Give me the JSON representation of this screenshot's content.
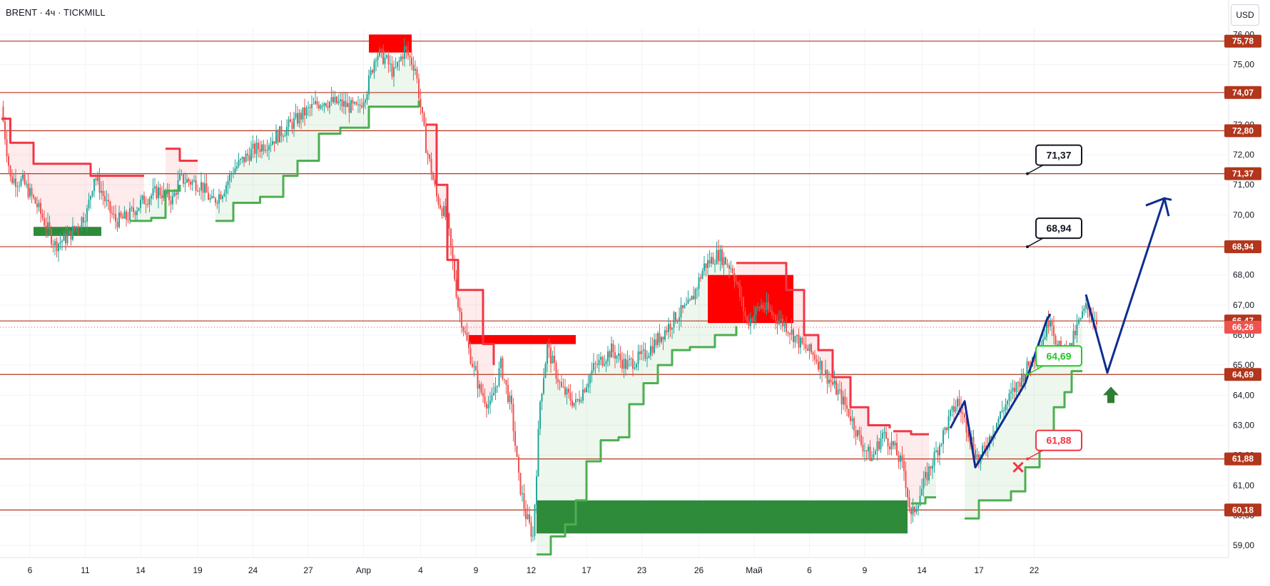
{
  "header": {
    "symbol": "BRENT",
    "timeframe": "4ч",
    "broker": "TICKMILL",
    "separator": "·"
  },
  "currency_button": "USD",
  "chart_data": {
    "type": "candlestick",
    "title": "BRENT · 4ч · TICKMILL",
    "ylabel": "USD",
    "ylim": [
      58.6,
      76.2
    ],
    "y_ticks": [
      "59,00",
      "60,00",
      "61,00",
      "62,00",
      "63,00",
      "64,00",
      "65,00",
      "66,00",
      "67,00",
      "68,00",
      "69,00",
      "70,00",
      "71,00",
      "72,00",
      "73,00",
      "74,00",
      "75,00",
      "76,00"
    ],
    "x_ticks": [
      "6",
      "11",
      "14",
      "19",
      "24",
      "27",
      "Апр",
      "4",
      "9",
      "12",
      "17",
      "23",
      "26",
      "Май",
      "6",
      "9",
      "14",
      "17",
      "22"
    ],
    "grid": true,
    "price_path": [
      [
        0,
        73.6
      ],
      [
        5,
        71.2
      ],
      [
        12,
        71.1
      ],
      [
        20,
        70.3
      ],
      [
        30,
        69.0
      ],
      [
        38,
        69.3
      ],
      [
        48,
        70.1
      ],
      [
        52,
        71.3
      ],
      [
        56,
        70.8
      ],
      [
        60,
        70.2
      ],
      [
        64,
        69.8
      ],
      [
        70,
        69.9
      ],
      [
        80,
        70.5
      ],
      [
        88,
        70.8
      ],
      [
        96,
        70.5
      ],
      [
        100,
        71.2
      ],
      [
        112,
        71.0
      ],
      [
        118,
        70.4
      ],
      [
        124,
        70.8
      ],
      [
        130,
        71.5
      ],
      [
        140,
        72.1
      ],
      [
        152,
        72.5
      ],
      [
        162,
        73.0
      ],
      [
        170,
        73.4
      ],
      [
        180,
        73.8
      ],
      [
        190,
        73.7
      ],
      [
        200,
        73.5
      ],
      [
        205,
        74.2
      ],
      [
        210,
        75.4
      ],
      [
        215,
        75.2
      ],
      [
        220,
        74.7
      ],
      [
        226,
        75.5
      ],
      [
        232,
        74.9
      ],
      [
        238,
        72.3
      ],
      [
        244,
        70.6
      ],
      [
        250,
        69.8
      ],
      [
        256,
        67.0
      ],
      [
        262,
        65.5
      ],
      [
        268,
        64.2
      ],
      [
        274,
        63.6
      ],
      [
        280,
        65.0
      ],
      [
        286,
        63.5
      ],
      [
        290,
        61.2
      ],
      [
        294,
        60.0
      ],
      [
        298,
        59.3
      ],
      [
        302,
        63.8
      ],
      [
        306,
        65.6
      ],
      [
        314,
        64.2
      ],
      [
        322,
        63.7
      ],
      [
        332,
        64.9
      ],
      [
        342,
        65.5
      ],
      [
        350,
        65.0
      ],
      [
        360,
        65.3
      ],
      [
        370,
        66.0
      ],
      [
        378,
        66.6
      ],
      [
        386,
        67.0
      ],
      [
        394,
        68.3
      ],
      [
        402,
        68.7
      ],
      [
        410,
        68.2
      ],
      [
        418,
        66.4
      ],
      [
        426,
        67.0
      ],
      [
        434,
        66.6
      ],
      [
        440,
        66.3
      ],
      [
        448,
        65.7
      ],
      [
        456,
        65.3
      ],
      [
        462,
        64.7
      ],
      [
        470,
        64.0
      ],
      [
        476,
        63.3
      ],
      [
        482,
        62.4
      ],
      [
        488,
        61.9
      ],
      [
        494,
        62.7
      ],
      [
        500,
        62.3
      ],
      [
        506,
        61.5
      ],
      [
        510,
        59.9
      ],
      [
        518,
        61.2
      ],
      [
        526,
        62.4
      ],
      [
        532,
        63.3
      ],
      [
        536,
        63.8
      ],
      [
        544,
        62.5
      ],
      [
        548,
        61.8
      ],
      [
        554,
        62.6
      ],
      [
        562,
        63.6
      ],
      [
        570,
        64.4
      ],
      [
        578,
        65.2
      ],
      [
        584,
        65.9
      ],
      [
        588,
        66.7
      ],
      [
        592,
        65.6
      ],
      [
        598,
        65.4
      ],
      [
        604,
        66.4
      ],
      [
        608,
        66.9
      ],
      [
        614,
        66.5
      ]
    ],
    "supertrend_up": [
      [
        [
          72,
          69.8
        ],
        [
          84,
          69.9
        ],
        [
          92,
          70.8
        ],
        [
          100,
          71.0
        ]
      ],
      [
        [
          120,
          69.8
        ],
        [
          130,
          70.4
        ],
        [
          145,
          70.6
        ],
        [
          158,
          71.3
        ],
        [
          166,
          71.8
        ],
        [
          178,
          72.7
        ],
        [
          190,
          72.9
        ],
        [
          204,
          72.9
        ],
        [
          206,
          73.6
        ],
        [
          228,
          73.6
        ],
        [
          234,
          73.8
        ]
      ],
      [
        [
          300,
          58.7
        ],
        [
          308,
          59.3
        ],
        [
          316,
          59.7
        ],
        [
          322,
          60.5
        ],
        [
          328,
          61.8
        ],
        [
          336,
          62.5
        ],
        [
          346,
          62.6
        ],
        [
          352,
          63.7
        ],
        [
          360,
          64.4
        ],
        [
          368,
          65.0
        ],
        [
          376,
          65.5
        ],
        [
          386,
          65.6
        ],
        [
          400,
          66.0
        ],
        [
          412,
          66.3
        ]
      ],
      [
        [
          510,
          60.4
        ],
        [
          518,
          60.6
        ],
        [
          524,
          60.6
        ]
      ],
      [
        [
          540,
          59.9
        ],
        [
          548,
          60.5
        ],
        [
          566,
          60.8
        ],
        [
          574,
          61.6
        ],
        [
          582,
          62.6
        ],
        [
          590,
          63.6
        ],
        [
          596,
          64.1
        ],
        [
          600,
          64.8
        ],
        [
          606,
          64.8
        ]
      ]
    ],
    "supertrend_down": [
      [
        [
          0,
          73.2
        ],
        [
          5,
          72.4
        ],
        [
          10,
          72.4
        ],
        [
          18,
          71.7
        ],
        [
          45,
          71.7
        ],
        [
          50,
          71.3
        ],
        [
          80,
          71.3
        ]
      ],
      [
        [
          92,
          72.2
        ],
        [
          100,
          71.8
        ],
        [
          110,
          71.8
        ]
      ],
      [
        [
          238,
          73.0
        ],
        [
          244,
          71.0
        ],
        [
          250,
          68.5
        ],
        [
          256,
          67.5
        ],
        [
          264,
          67.5
        ],
        [
          270,
          65.7
        ],
        [
          276,
          65.0
        ]
      ],
      [
        [
          412,
          68.4
        ],
        [
          432,
          68.4
        ],
        [
          440,
          67.5
        ],
        [
          450,
          66.0
        ],
        [
          458,
          65.5
        ],
        [
          466,
          64.6
        ],
        [
          476,
          63.6
        ],
        [
          486,
          63.0
        ],
        [
          498,
          62.9
        ]
      ],
      [
        [
          500,
          62.8
        ],
        [
          510,
          62.7
        ],
        [
          520,
          62.7
        ]
      ]
    ],
    "supply_zones": [
      {
        "x": [
          206,
          230
        ],
        "y": [
          75.4,
          76.0
        ]
      },
      {
        "x": [
          262,
          322
        ],
        "y": [
          65.7,
          66.0
        ]
      },
      {
        "x": [
          396,
          444
        ],
        "y": [
          66.4,
          68.0
        ]
      }
    ],
    "demand_zones": [
      {
        "x": [
          18,
          56
        ],
        "y": [
          69.3,
          69.6
        ]
      },
      {
        "x": [
          300,
          508
        ],
        "y": [
          59.4,
          60.5
        ]
      }
    ],
    "levels": [
      {
        "value": 75.78,
        "label": "75,78"
      },
      {
        "value": 74.07,
        "label": "74,07"
      },
      {
        "value": 72.8,
        "label": "72,80"
      },
      {
        "value": 71.37,
        "label": "71,37"
      },
      {
        "value": 68.94,
        "label": "68,94"
      },
      {
        "value": 66.47,
        "label": "66,47"
      },
      {
        "value": 64.69,
        "label": "64,69"
      },
      {
        "value": 61.88,
        "label": "61,88"
      },
      {
        "value": 60.18,
        "label": "60,18"
      }
    ],
    "current_price": {
      "value": 66.26,
      "label": "66,26"
    },
    "forecast_path": [
      [
        608,
        67.35
      ],
      [
        620,
        64.75
      ],
      [
        652,
        70.55
      ],
      [
        656,
        70.5
      ]
    ],
    "impulse_path": [
      [
        532,
        62.9
      ],
      [
        540,
        63.8
      ],
      [
        546,
        61.6
      ],
      [
        574,
        64.4
      ],
      [
        586,
        66.5
      ],
      [
        588,
        66.7
      ]
    ],
    "targets": [
      {
        "value": 71.37,
        "label": "71,37",
        "color": "#131722"
      },
      {
        "value": 68.94,
        "label": "68,94",
        "color": "#131722"
      },
      {
        "value": 64.69,
        "label": "64,69",
        "color": "#22c922"
      },
      {
        "value": 61.88,
        "label": "61,88",
        "color": "#f23645"
      }
    ],
    "entry_arrow": {
      "value": 64.0,
      "direction": "up",
      "color": "#2e7d32"
    },
    "stop_mark": {
      "value": 61.6,
      "symbol": "×",
      "color": "#f23645"
    },
    "colors": {
      "bull": "#26a69a",
      "bear": "#ef5350",
      "level": "#b2361c",
      "supertrend_up": "#4caf50",
      "supertrend_down": "#f23645",
      "supply": "#ff0000",
      "demand": "#2e8b3a",
      "forecast": "#0d2d8f"
    }
  }
}
